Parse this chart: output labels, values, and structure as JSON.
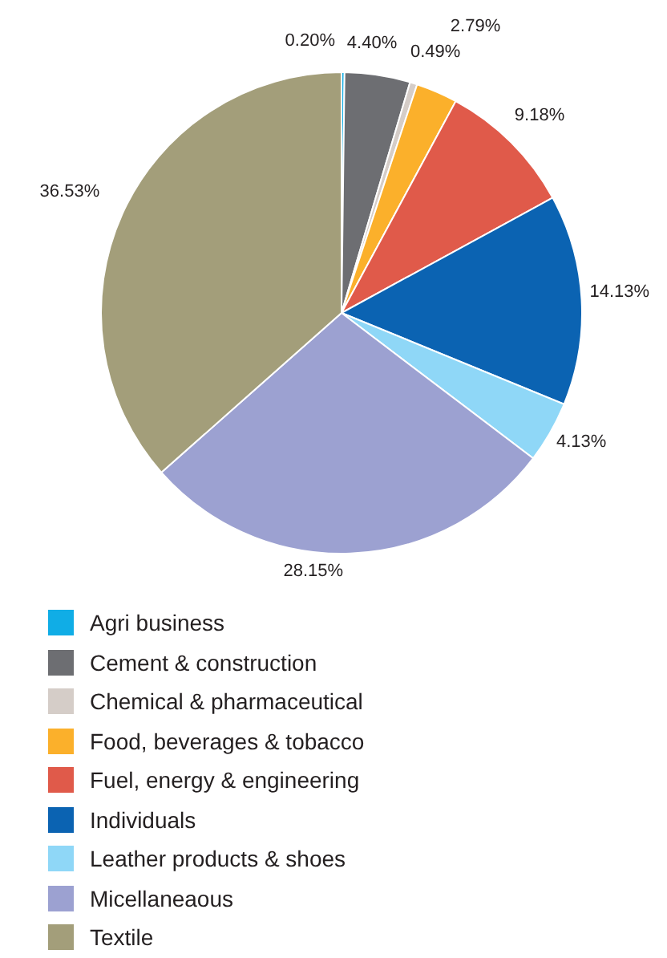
{
  "chart_data": {
    "type": "pie",
    "categories": [
      "Agri business",
      "Cement & construction",
      "Chemical & pharmaceutical",
      "Food, beverages & tobacco",
      "Fuel, energy & engineering",
      "Individuals",
      "Leather products & shoes",
      "Micellaneaous",
      "Textile"
    ],
    "values": [
      0.2,
      4.4,
      0.49,
      2.79,
      9.18,
      14.13,
      4.13,
      28.15,
      36.53
    ],
    "value_labels": [
      "0.20%",
      "4.40%",
      "0.49%",
      "2.79%",
      "9.18%",
      "14.13%",
      "4.13%",
      "28.15%",
      "36.53%"
    ],
    "colors": [
      "#10ade6",
      "#6d6e72",
      "#d5cdc8",
      "#fbb02b",
      "#e05a4a",
      "#0b63b2",
      "#8fd7f7",
      "#9ca1d1",
      "#a39e7a"
    ],
    "legend": "bottom"
  }
}
